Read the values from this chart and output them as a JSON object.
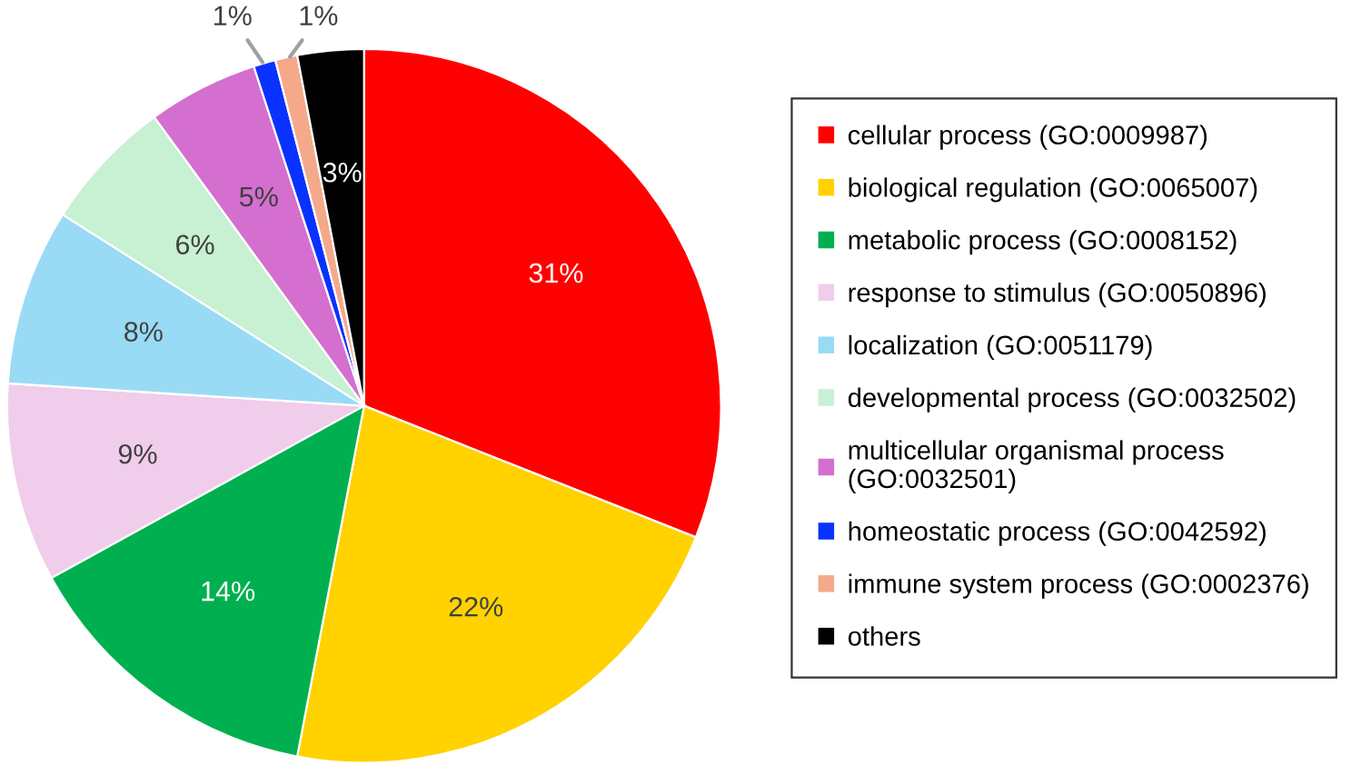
{
  "chart_data": {
    "type": "pie",
    "categories": [
      "cellular process (GO:0009987)",
      "biological regulation (GO:0065007)",
      "metabolic process (GO:0008152)",
      "response to stimulus (GO:0050896)",
      "localization (GO:0051179)",
      "developmental process (GO:0032502)",
      "multicellular organismal process (GO:0032501)",
      "homeostatic process (GO:0042592)",
      "immune system process (GO:0002376)",
      "others"
    ],
    "values": [
      31,
      22,
      14,
      9,
      8,
      6,
      5,
      1,
      1,
      3
    ],
    "colors": [
      "#ff0000",
      "#ffd200",
      "#00b050",
      "#f0cdeb",
      "#99dbf5",
      "#c8f0d2",
      "#d46fcf",
      "#0a32ff",
      "#f4a98a",
      "#000000"
    ],
    "value_labels": [
      "31%",
      "22%",
      "14%",
      "9%",
      "8%",
      "6%",
      "5%",
      "1%",
      "1%",
      "3%"
    ],
    "legend": "right"
  }
}
